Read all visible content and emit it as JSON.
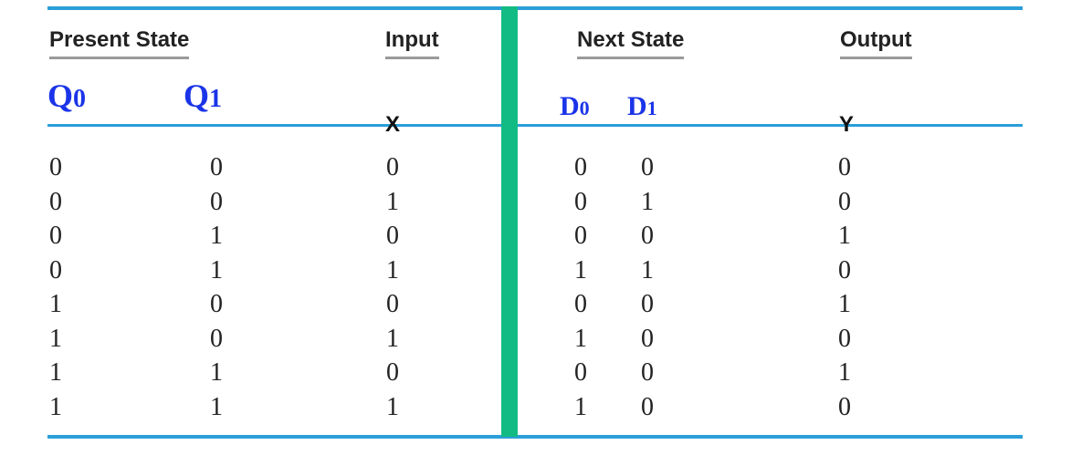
{
  "groups": {
    "present_state": "Present State",
    "input": "Input",
    "next_state": "Next State",
    "output": "Output"
  },
  "variables": {
    "q0": {
      "letter": "Q",
      "sub": "0"
    },
    "q1": {
      "letter": "Q",
      "sub": "1"
    },
    "x": "X",
    "d0": {
      "letter": "D",
      "sub": "0"
    },
    "d1": {
      "letter": "D",
      "sub": "1"
    },
    "y": "Y"
  },
  "rows": [
    {
      "q0": "0",
      "q1": "0",
      "x": "0",
      "d0": "0",
      "d1": "0",
      "y": "0"
    },
    {
      "q0": "0",
      "q1": "0",
      "x": "1",
      "d0": "0",
      "d1": "1",
      "y": "0"
    },
    {
      "q0": "0",
      "q1": "1",
      "x": "0",
      "d0": "0",
      "d1": "0",
      "y": "1"
    },
    {
      "q0": "0",
      "q1": "1",
      "x": "1",
      "d0": "1",
      "d1": "1",
      "y": "0"
    },
    {
      "q0": "1",
      "q1": "0",
      "x": "0",
      "d0": "0",
      "d1": "0",
      "y": "1"
    },
    {
      "q0": "1",
      "q1": "0",
      "x": "1",
      "d0": "1",
      "d1": "0",
      "y": "0"
    },
    {
      "q0": "1",
      "q1": "1",
      "x": "0",
      "d0": "0",
      "d1": "0",
      "y": "1"
    },
    {
      "q0": "1",
      "q1": "1",
      "x": "1",
      "d0": "1",
      "d1": "0",
      "y": "0"
    }
  ],
  "colors": {
    "rule": "#2b9fd9",
    "divider": "#12bb84",
    "variable_highlight": "#1a34e8"
  }
}
